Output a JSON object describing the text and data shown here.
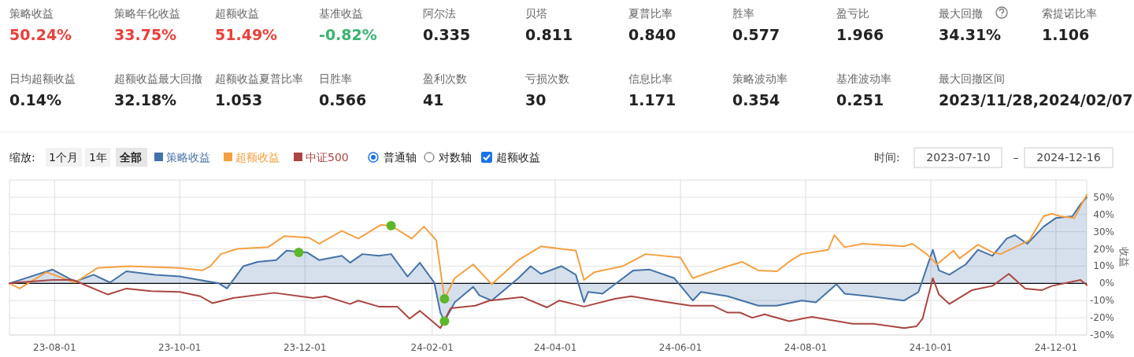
{
  "chart_data": [
    {
      "type": "other",
      "categories": [
        "策略收益",
        "策略年化收益",
        "超额收益",
        "基准收益",
        "阿尔法",
        "贝塔",
        "夏普比率",
        "胜率",
        "盈亏比",
        "最大回撤",
        "索提诺比率",
        "日均超额收益",
        "超额收益最大回撤",
        "超额收益夏普比率",
        "日胜率",
        "盈利次数",
        "亏损次数",
        "信息比率",
        "策略波动率",
        "基准波动率",
        "最大回撤区间"
      ],
      "value_labels": [
        "50.24%",
        "33.75%",
        "51.49%",
        "-0.82%",
        "0.335",
        "0.811",
        "0.840",
        "0.577",
        "1.966",
        "34.31%",
        "1.106",
        "0.14%",
        "32.18%",
        "1.053",
        "0.566",
        "41",
        "30",
        "1.171",
        "0.354",
        "0.251",
        "2023/11/28,2024/02/07"
      ],
      "colors": [
        "#e8413c",
        "#e8413c",
        "#e8413c",
        "#3cb371",
        "#222222",
        "#222222",
        "#222222",
        "#222222",
        "#222222",
        "#222222",
        "#222222",
        "#222222",
        "#222222",
        "#222222",
        "#222222",
        "#222222",
        "#222222",
        "#222222",
        "#222222",
        "#222222",
        "#222222"
      ]
    },
    {
      "type": "line",
      "ylabel": "收益",
      "legend": "top left",
      "grid": true,
      "marker": "none",
      "line_style": "solid",
      "annotations": [
        "缩放:",
        "1个月",
        "1年",
        "全部",
        "普通轴",
        "对数轴",
        "超额收益",
        "时间:",
        "2023-07-10",
        "–",
        "2024-12-16"
      ],
      "xlim": [
        "2023-07-10",
        "2024-12-16"
      ],
      "xticks": [
        {
          "value": "2023-08-01",
          "label": "23-08-01"
        },
        {
          "value": "2023-10-01",
          "label": "23-10-01"
        },
        {
          "value": "2023-12-01",
          "label": "23-12-01"
        },
        {
          "value": "2024-02-01",
          "label": "24-02-01"
        },
        {
          "value": "2024-04-01",
          "label": "24-04-01"
        },
        {
          "value": "2024-06-01",
          "label": "24-06-01"
        },
        {
          "value": "2024-08-01",
          "label": "24-08-01"
        },
        {
          "value": "2024-10-01",
          "label": "24-10-01"
        },
        {
          "value": "2024-12-01",
          "label": "24-12-01"
        }
      ],
      "ylim": [
        -30,
        60
      ],
      "yticks": [
        {
          "value": -30,
          "label": "-30%"
        },
        {
          "value": -20,
          "label": "-20%"
        },
        {
          "value": -10,
          "label": "-10%"
        },
        {
          "value": 0,
          "label": "0%"
        },
        {
          "value": 10,
          "label": "10%"
        },
        {
          "value": 20,
          "label": "20%"
        },
        {
          "value": 30,
          "label": "30%"
        },
        {
          "value": 40,
          "label": "40%"
        },
        {
          "value": 50,
          "label": "50%"
        }
      ],
      "ref_lines": [
        {
          "axis": "y",
          "value": 0,
          "color": "#000000"
        }
      ],
      "series": [
        {
          "name": "策略收益",
          "type": "area",
          "color": "#4572a7",
          "x": [
            "2023-07-10",
            "2023-07-31",
            "2023-08-11",
            "2023-08-20",
            "2023-08-28",
            "2023-09-05",
            "2023-09-19",
            "2023-10-01",
            "2023-10-20",
            "2023-10-24",
            "2023-11-01",
            "2023-11-08",
            "2023-11-17",
            "2023-11-22",
            "2023-12-02",
            "2023-12-08",
            "2023-12-19",
            "2023-12-23",
            "2023-12-29",
            "2024-01-06",
            "2024-01-12",
            "2024-01-20",
            "2024-01-26",
            "2024-02-02",
            "2024-02-05",
            "2024-02-07",
            "2024-02-12",
            "2024-02-21",
            "2024-02-24",
            "2024-03-01",
            "2024-03-14",
            "2024-03-20",
            "2024-03-25",
            "2024-04-04",
            "2024-04-11",
            "2024-04-15",
            "2024-04-17",
            "2024-04-24",
            "2024-05-04",
            "2024-05-09",
            "2024-05-17",
            "2024-05-29",
            "2024-06-07",
            "2024-06-11",
            "2024-06-24",
            "2024-07-09",
            "2024-07-18",
            "2024-07-30",
            "2024-08-06",
            "2024-08-16",
            "2024-08-20",
            "2024-09-01",
            "2024-09-18",
            "2024-09-25",
            "2024-10-02",
            "2024-10-05",
            "2024-10-10",
            "2024-10-18",
            "2024-10-24",
            "2024-10-31",
            "2024-11-07",
            "2024-11-11",
            "2024-11-17",
            "2024-11-25",
            "2024-12-01",
            "2024-12-09",
            "2024-12-13",
            "2024-12-16"
          ],
          "values": [
            0,
            8,
            1,
            5,
            0.5,
            7,
            5,
            4,
            0,
            -3,
            10,
            12.5,
            13.5,
            19,
            18,
            13.5,
            16,
            12,
            17,
            16,
            17,
            4,
            12,
            0.5,
            -17,
            -22,
            -11,
            -2,
            -7,
            -10,
            3,
            10,
            5.5,
            10,
            5,
            -11,
            -5,
            -6,
            3,
            7.5,
            8,
            3,
            -10,
            -5,
            -7.5,
            -13,
            -13,
            -10,
            -11,
            -0.5,
            -6,
            -7.5,
            -10,
            -5,
            19.5,
            7.5,
            5,
            11,
            19.5,
            16,
            26,
            28,
            23,
            33,
            38,
            39,
            46,
            50
          ]
        },
        {
          "name": "超额收益",
          "color": "#f5a040",
          "x": [
            "2023-07-10",
            "2023-07-15",
            "2023-07-28",
            "2023-08-11",
            "2023-08-22",
            "2023-09-06",
            "2023-10-01",
            "2023-10-12",
            "2023-10-16",
            "2023-10-21",
            "2023-10-29",
            "2023-11-13",
            "2023-11-21",
            "2023-12-03",
            "2023-12-08",
            "2023-12-19",
            "2023-12-27",
            "2024-01-07",
            "2024-01-12",
            "2024-01-22",
            "2024-01-28",
            "2024-02-03",
            "2024-02-07",
            "2024-02-12",
            "2024-02-21",
            "2024-03-01",
            "2024-03-14",
            "2024-03-25",
            "2024-04-11",
            "2024-04-15",
            "2024-04-20",
            "2024-05-04",
            "2024-05-15",
            "2024-06-01",
            "2024-06-07",
            "2024-06-18",
            "2024-06-24",
            "2024-07-01",
            "2024-07-09",
            "2024-07-18",
            "2024-07-25",
            "2024-07-30",
            "2024-08-12",
            "2024-08-15",
            "2024-08-20",
            "2024-08-29",
            "2024-09-18",
            "2024-09-22",
            "2024-09-29",
            "2024-10-04",
            "2024-10-12",
            "2024-10-15",
            "2024-10-24",
            "2024-10-31",
            "2024-11-04",
            "2024-11-11",
            "2024-11-18",
            "2024-11-25",
            "2024-11-29",
            "2024-12-03",
            "2024-12-10",
            "2024-12-16"
          ],
          "values": [
            0,
            -3,
            6.5,
            0.5,
            9,
            10,
            9,
            7.5,
            10,
            17,
            20,
            21,
            27.5,
            26.5,
            23,
            30.5,
            26,
            34,
            33.5,
            26,
            33,
            25,
            -9,
            3,
            11,
            -0.5,
            13.5,
            21.5,
            19,
            2,
            6.5,
            10,
            17,
            15,
            3,
            7.5,
            10,
            12.5,
            7.5,
            7,
            13.5,
            17,
            19.5,
            28,
            21,
            23,
            21.5,
            23,
            17,
            11,
            19,
            14.5,
            22.5,
            18,
            17,
            21,
            25,
            39,
            40.5,
            39,
            38,
            51.5
          ]
        },
        {
          "name": "中证500",
          "color": "#aa4643",
          "x": [
            "2023-07-10",
            "2023-07-14",
            "2023-07-31",
            "2023-08-10",
            "2023-08-27",
            "2023-09-05",
            "2023-09-17",
            "2023-10-01",
            "2023-10-11",
            "2023-10-17",
            "2023-10-27",
            "2023-11-16",
            "2023-12-05",
            "2023-12-11",
            "2023-12-23",
            "2023-12-27",
            "2024-01-06",
            "2024-01-15",
            "2024-01-21",
            "2024-01-26",
            "2024-02-05",
            "2024-02-10",
            "2024-02-22",
            "2024-02-29",
            "2024-03-16",
            "2024-03-28",
            "2024-04-03",
            "2024-04-15",
            "2024-04-30",
            "2024-05-08",
            "2024-05-23",
            "2024-06-06",
            "2024-06-17",
            "2024-06-24",
            "2024-06-30",
            "2024-07-06",
            "2024-07-12",
            "2024-07-24",
            "2024-08-04",
            "2024-08-24",
            "2024-09-03",
            "2024-09-18",
            "2024-09-24",
            "2024-09-27",
            "2024-10-02",
            "2024-10-05",
            "2024-10-10",
            "2024-10-21",
            "2024-10-31",
            "2024-11-08",
            "2024-11-16",
            "2024-11-24",
            "2024-11-29",
            "2024-12-13",
            "2024-12-16"
          ],
          "values": [
            0,
            0.5,
            2,
            2,
            -6.5,
            -3,
            -4.5,
            -5,
            -7.5,
            -11.5,
            -8.5,
            -5.5,
            -8.5,
            -7.5,
            -12,
            -10,
            -13.5,
            -13.5,
            -20.5,
            -16,
            -26,
            -14.5,
            -13,
            -10,
            -8,
            -14,
            -10,
            -13.5,
            -9,
            -7.5,
            -10.5,
            -13,
            -13,
            -17,
            -17,
            -20,
            -18,
            -22,
            -19.5,
            -23.5,
            -23.5,
            -26,
            -25,
            -20.5,
            3,
            -6.5,
            -12,
            -4,
            -1.5,
            5.5,
            -3,
            -4,
            -1.5,
            2,
            -1
          ]
        },
        {
          "type": "scatter",
          "marker": "circle",
          "color": "#5cb82a",
          "x": [
            "2023-11-28",
            "2024-01-12",
            "2024-02-07",
            "2024-02-07"
          ],
          "values": [
            18,
            33.5,
            -9,
            -22
          ]
        }
      ]
    }
  ]
}
